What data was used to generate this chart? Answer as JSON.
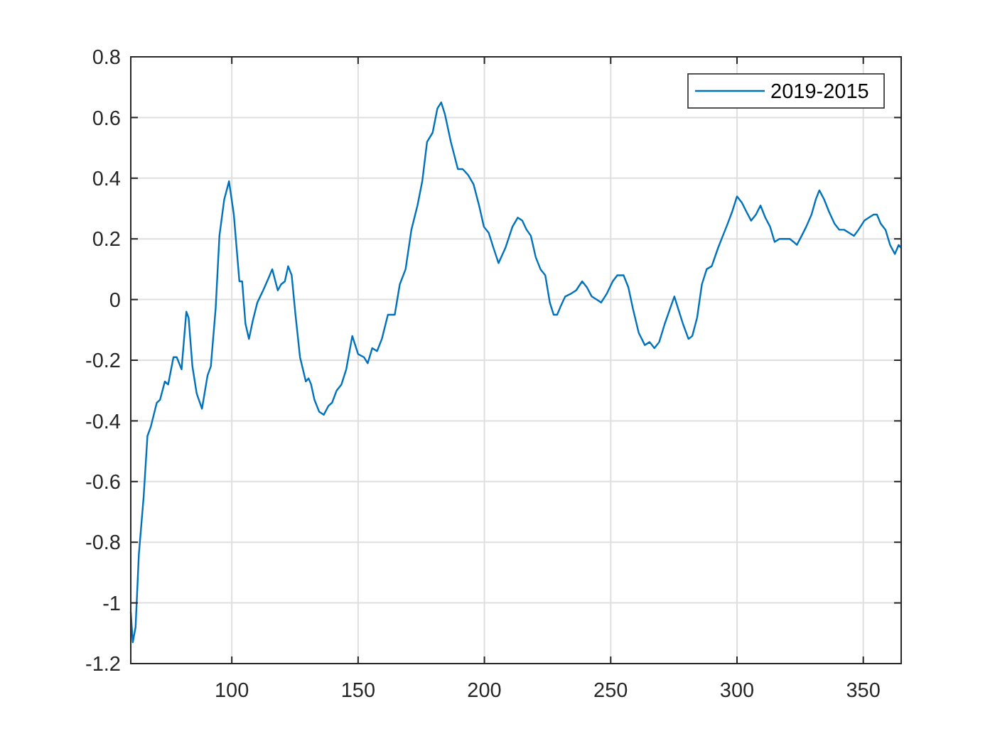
{
  "chart_data": {
    "type": "line",
    "x": [
      60,
      60.8,
      61.9,
      63.2,
      65.1,
      66.6,
      67.9,
      70.3,
      71.6,
      73.5,
      74.8,
      76.9,
      78.2,
      80.1,
      82,
      82.9,
      84.4,
      86.1,
      88.2,
      90.4,
      91.7,
      93.6,
      95.1,
      97,
      98.9,
      100.8,
      103,
      104.1,
      105.4,
      106.8,
      108.3,
      110.1,
      112.4,
      114.5,
      116,
      118.2,
      119.5,
      121,
      122.3,
      123.7,
      125.2,
      127,
      129.3,
      130.4,
      131.4,
      132.7,
      134.6,
      136.4,
      138.3,
      139.7,
      141.5,
      143.4,
      145.3,
      147.7,
      150,
      152.3,
      153.8,
      155.6,
      157.5,
      159.4,
      161.8,
      164.5,
      166.5,
      168.8,
      171.1,
      173.5,
      175.4,
      177.3,
      179.5,
      181.4,
      182.9,
      184.4,
      186.7,
      189.5,
      191.4,
      193.6,
      195.7,
      197.9,
      199.8,
      201.7,
      203.6,
      205.6,
      208.3,
      211.1,
      213.2,
      215,
      216.7,
      218.4,
      220.3,
      222.2,
      224.1,
      225.9,
      227.4,
      228.8,
      230.3,
      232,
      234.4,
      236.3,
      238.7,
      240.6,
      242.5,
      244.4,
      246.2,
      248.5,
      250.8,
      252.6,
      255.1,
      257,
      258.8,
      261.1,
      263.5,
      265.4,
      267.3,
      269.2,
      271.4,
      273.5,
      275.2,
      276.7,
      278.6,
      280.8,
      282.3,
      284.2,
      286.1,
      288,
      290,
      292.5,
      294.4,
      296.3,
      298.1,
      300,
      301.9,
      303.7,
      305.6,
      307.5,
      309.3,
      311.2,
      313.1,
      314.9,
      316.8,
      318.7,
      320.9,
      322.4,
      323.7,
      325.6,
      327.4,
      329.5,
      331.2,
      332.6,
      334.5,
      336.4,
      338.6,
      340.5,
      342.4,
      344.4,
      346.3,
      348.1,
      350.4,
      352.2,
      354.1,
      355.4,
      356.9,
      358.8,
      360.6,
      362.5,
      364,
      365
    ],
    "series": [
      {
        "name": "2019-2015",
        "color": "#0072bd",
        "values": [
          -1.03,
          -1.13,
          -1.08,
          -0.84,
          -0.65,
          -0.45,
          -0.42,
          -0.34,
          -0.33,
          -0.27,
          -0.28,
          -0.19,
          -0.19,
          -0.23,
          -0.04,
          -0.06,
          -0.22,
          -0.31,
          -0.36,
          -0.25,
          -0.22,
          -0.03,
          0.21,
          0.33,
          0.39,
          0.28,
          0.06,
          0.06,
          -0.08,
          -0.13,
          -0.07,
          -0.01,
          0.03,
          0.07,
          0.1,
          0.03,
          0.05,
          0.06,
          0.11,
          0.08,
          -0.05,
          -0.19,
          -0.27,
          -0.26,
          -0.28,
          -0.33,
          -0.37,
          -0.38,
          -0.35,
          -0.34,
          -0.3,
          -0.28,
          -0.23,
          -0.12,
          -0.18,
          -0.19,
          -0.21,
          -0.16,
          -0.17,
          -0.13,
          -0.05,
          -0.05,
          0.05,
          0.1,
          0.23,
          0.31,
          0.39,
          0.52,
          0.55,
          0.63,
          0.65,
          0.61,
          0.52,
          0.43,
          0.43,
          0.41,
          0.38,
          0.31,
          0.24,
          0.22,
          0.17,
          0.12,
          0.17,
          0.24,
          0.27,
          0.26,
          0.23,
          0.21,
          0.14,
          0.1,
          0.08,
          -0.01,
          -0.05,
          -0.05,
          -0.02,
          0.01,
          0.02,
          0.03,
          0.06,
          0.04,
          0.01,
          0,
          -0.01,
          0.02,
          0.06,
          0.08,
          0.08,
          0.04,
          -0.03,
          -0.11,
          -0.15,
          -0.14,
          -0.16,
          -0.14,
          -0.08,
          -0.03,
          0.01,
          -0.03,
          -0.08,
          -0.13,
          -0.12,
          -0.06,
          0.05,
          0.1,
          0.11,
          0.17,
          0.21,
          0.25,
          0.29,
          0.34,
          0.32,
          0.29,
          0.26,
          0.28,
          0.31,
          0.27,
          0.24,
          0.19,
          0.2,
          0.2,
          0.2,
          0.19,
          0.18,
          0.21,
          0.24,
          0.28,
          0.33,
          0.36,
          0.33,
          0.29,
          0.25,
          0.23,
          0.23,
          0.22,
          0.21,
          0.23,
          0.26,
          0.27,
          0.28,
          0.28,
          0.25,
          0.23,
          0.18,
          0.15,
          0.18,
          0.17
        ]
      }
    ],
    "xlim": [
      60,
      365
    ],
    "xticks": [
      100,
      150,
      200,
      250,
      300,
      350
    ],
    "ylim": [
      -1.2,
      0.8
    ],
    "yticks": [
      -1.2,
      -1,
      -0.8,
      -0.6,
      -0.4,
      -0.2,
      0,
      0.2,
      0.4,
      0.6,
      0.8
    ],
    "grid": true,
    "legend": "top right"
  }
}
